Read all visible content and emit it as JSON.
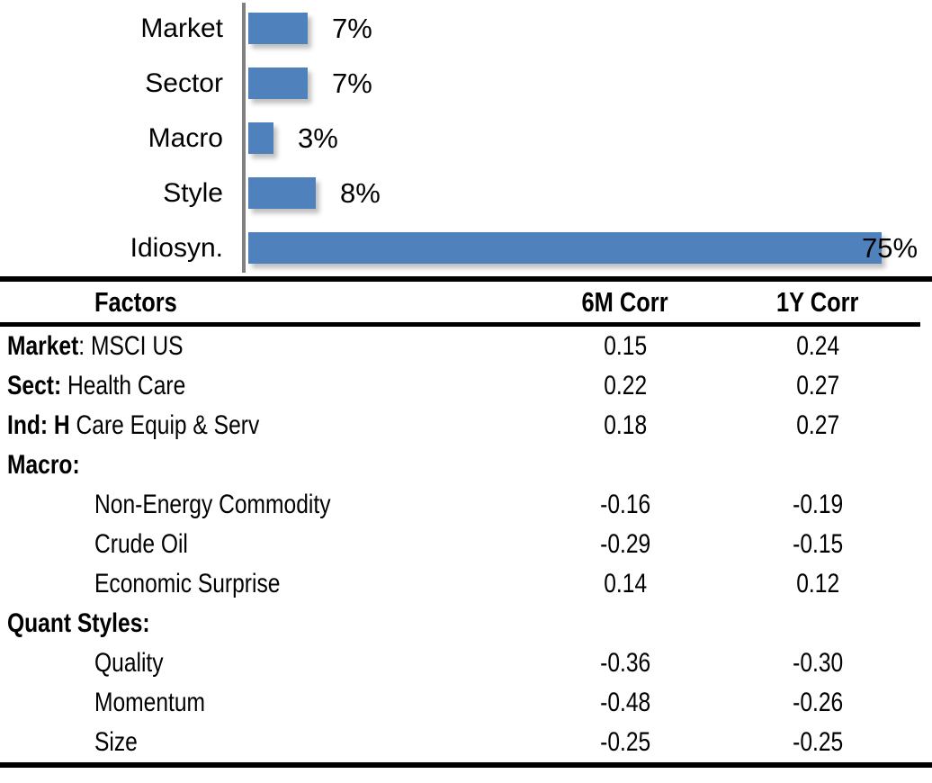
{
  "chart_data": [
    {
      "type": "bar",
      "orientation": "horizontal",
      "title": "",
      "xlabel": "",
      "ylabel": "",
      "categories": [
        "Market",
        "Sector",
        "Macro",
        "Style",
        "Idiosyn."
      ],
      "values": [
        7,
        7,
        3,
        8,
        75
      ],
      "value_labels": [
        "7%",
        "7%",
        "3%",
        "8%",
        "75%"
      ],
      "unit": "percent",
      "xlim": [
        0,
        81
      ],
      "grid": false,
      "legend": false,
      "bar_color": "#4f81bd",
      "axis_color": "#808080"
    },
    {
      "type": "table",
      "columns": [
        "Factors",
        "6M Corr",
        "1Y Corr"
      ],
      "rows": [
        {
          "bold": "Market",
          "rest": ": MSCI US",
          "indent": false,
          "corr6m": "0.15",
          "corr1y": "0.24"
        },
        {
          "bold": "Sect:",
          "rest": " Health Care",
          "indent": false,
          "corr6m": "0.22",
          "corr1y": "0.27"
        },
        {
          "bold": "Ind: H",
          "rest": " Care Equip & Serv",
          "indent": false,
          "corr6m": "0.18",
          "corr1y": "0.27"
        },
        {
          "bold": "Macro:",
          "rest": "",
          "indent": false,
          "corr6m": "",
          "corr1y": ""
        },
        {
          "bold": "",
          "rest": "Non-Energy Commodity",
          "indent": true,
          "corr6m": "-0.16",
          "corr1y": "-0.19"
        },
        {
          "bold": "",
          "rest": "Crude Oil",
          "indent": true,
          "corr6m": "-0.29",
          "corr1y": "-0.15"
        },
        {
          "bold": "",
          "rest": "Economic Surprise",
          "indent": true,
          "corr6m": "0.14",
          "corr1y": "0.12"
        },
        {
          "bold": "Quant Styles:",
          "rest": "",
          "indent": false,
          "corr6m": "",
          "corr1y": ""
        },
        {
          "bold": "",
          "rest": "Quality",
          "indent": true,
          "corr6m": "-0.36",
          "corr1y": "-0.30"
        },
        {
          "bold": "",
          "rest": "Momentum",
          "indent": true,
          "corr6m": "-0.48",
          "corr1y": "-0.26"
        },
        {
          "bold": "",
          "rest": "Size",
          "indent": true,
          "corr6m": "-0.25",
          "corr1y": "-0.25"
        }
      ]
    }
  ]
}
